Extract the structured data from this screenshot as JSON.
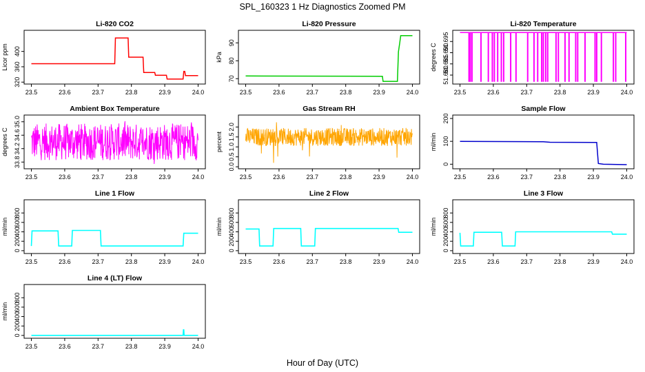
{
  "figure": {
    "title": "SPL_160323  1 Hz Diagnostics Zoomed PM",
    "xlabel": "Hour of Day (UTC)"
  },
  "chart_data": [
    {
      "type": "line",
      "title": "Li-820 CO2",
      "ylabel": "Licor ppm",
      "color": "#ff0000",
      "xlim": [
        23.5,
        24.0
      ],
      "ylim": [
        315,
        455
      ],
      "yticks": [
        320,
        360,
        400
      ],
      "series": [
        {
          "x": [
            23.5,
            23.75,
            23.752,
            23.79,
            23.792,
            23.835,
            23.837,
            23.87,
            23.872,
            23.905,
            23.907,
            23.955,
            23.957,
            23.96,
            23.962,
            24.0
          ],
          "values": [
            368,
            368,
            435,
            435,
            385,
            385,
            345,
            345,
            338,
            338,
            328,
            328,
            348,
            348,
            337,
            337
          ]
        }
      ]
    },
    {
      "type": "line",
      "title": "Li-820 Pressure",
      "ylabel": "kPa",
      "color": "#00cc00",
      "xlim": [
        23.5,
        24.0
      ],
      "ylim": [
        67,
        97
      ],
      "yticks": [
        70,
        80,
        90
      ],
      "series": [
        {
          "x": [
            23.5,
            23.91,
            23.912,
            23.955,
            23.958,
            23.962,
            23.965,
            24.0
          ],
          "values": [
            71.5,
            71.3,
            68.5,
            68.5,
            85,
            90,
            94,
            94
          ]
        }
      ]
    },
    {
      "type": "line",
      "title": "Li-820 Temperature",
      "ylabel": "degrees C",
      "color": "#ff00ff",
      "xlim": [
        23.5,
        24.0
      ],
      "ylim": [
        51.676,
        51.7
      ],
      "yticks": [
        51.68,
        51.685,
        51.69,
        51.695
      ],
      "series": [
        {
          "x": [
            23.5,
            24.0
          ],
          "values": [
            51.699,
            51.699
          ]
        }
      ],
      "dropouts": [
        23.527,
        23.531,
        23.536,
        23.563,
        23.585,
        23.597,
        23.603,
        23.613,
        23.624,
        23.631,
        23.652,
        23.668,
        23.703,
        23.722,
        23.733,
        23.745,
        23.75,
        23.757,
        23.763,
        23.788,
        23.795,
        23.815,
        23.827,
        23.847,
        23.853,
        23.875,
        23.905,
        23.91,
        23.924,
        23.96,
        23.967,
        23.997
      ],
      "dropout_level": 51.677
    },
    {
      "type": "line",
      "title": "Ambient Box Temperature",
      "ylabel": "degrees C",
      "color": "#ff00ff",
      "xlim": [
        23.5,
        24.0
      ],
      "ylim": [
        33.6,
        35.2
      ],
      "yticks": [
        33.8,
        34.2,
        34.6,
        35.0
      ],
      "series": [
        {
          "x": [
            23.5,
            24.0
          ],
          "values": [
            34.35,
            34.35
          ]
        }
      ],
      "noise_band": [
        33.85,
        34.95
      ]
    },
    {
      "type": "line",
      "title": "Gas Stream RH",
      "ylabel": "percent",
      "color": "#ffa500",
      "xlim": [
        23.5,
        24.0
      ],
      "ylim": [
        -0.1,
        2.6
      ],
      "yticks": [
        0.0,
        0.5,
        1.0,
        1.5,
        2.0
      ],
      "series": [
        {
          "x": [
            23.5,
            24.0
          ],
          "values": [
            1.5,
            1.5
          ]
        }
      ],
      "noise_band": [
        1.05,
        1.95
      ]
    },
    {
      "type": "line",
      "title": "Sample Flow",
      "ylabel": "ml/min",
      "color": "#0000cc",
      "xlim": [
        23.5,
        24.0
      ],
      "ylim": [
        -20,
        215
      ],
      "yticks": [
        0,
        100,
        200
      ],
      "series": [
        {
          "x": [
            23.5,
            23.75,
            23.77,
            23.9,
            23.91,
            23.915,
            23.93,
            24.0
          ],
          "values": [
            100,
            98,
            96,
            95,
            95,
            3,
            0,
            -2
          ]
        }
      ]
    },
    {
      "type": "line",
      "title": "Line 1 Flow",
      "ylabel": "ml/min",
      "color": "#00ffff",
      "xlim": [
        23.5,
        24.0
      ],
      "ylim": [
        -60,
        1080
      ],
      "yticks": [
        0,
        200,
        400,
        600,
        800
      ],
      "series": [
        {
          "x": [
            23.5,
            23.502,
            23.58,
            23.582,
            23.621,
            23.623,
            23.707,
            23.709,
            23.955,
            23.957,
            24.0
          ],
          "values": [
            100,
            420,
            420,
            100,
            100,
            430,
            430,
            100,
            100,
            370,
            370
          ]
        }
      ]
    },
    {
      "type": "line",
      "title": "Line 2 Flow",
      "ylabel": "ml/min",
      "color": "#00ffff",
      "xlim": [
        23.5,
        24.0
      ],
      "ylim": [
        -60,
        1080
      ],
      "yticks": [
        0,
        200,
        400,
        600,
        800
      ],
      "series": [
        {
          "x": [
            23.5,
            23.54,
            23.542,
            23.582,
            23.584,
            23.665,
            23.667,
            23.707,
            23.709,
            23.957,
            23.959,
            24.0
          ],
          "values": [
            460,
            460,
            100,
            100,
            470,
            470,
            100,
            100,
            470,
            470,
            390,
            390
          ]
        }
      ]
    },
    {
      "type": "line",
      "title": "Line 3 Flow",
      "ylabel": "ml/min",
      "color": "#00ffff",
      "xlim": [
        23.5,
        24.0
      ],
      "ylim": [
        -60,
        1080
      ],
      "yticks": [
        0,
        200,
        400,
        600,
        800
      ],
      "series": [
        {
          "x": [
            23.5,
            23.502,
            23.54,
            23.542,
            23.625,
            23.627,
            23.665,
            23.667,
            23.955,
            23.957,
            24.0
          ],
          "values": [
            380,
            100,
            100,
            390,
            390,
            100,
            100,
            400,
            400,
            350,
            350
          ]
        }
      ]
    },
    {
      "type": "line",
      "title": "Line 4 (LT) Flow",
      "ylabel": "ml/min",
      "color": "#00ffff",
      "xlim": [
        23.5,
        24.0
      ],
      "ylim": [
        -60,
        1080
      ],
      "yticks": [
        0,
        200,
        400,
        600,
        800
      ],
      "series": [
        {
          "x": [
            23.5,
            23.955,
            23.956,
            23.957,
            23.958,
            24.0
          ],
          "values": [
            2,
            2,
            120,
            120,
            2,
            2
          ]
        }
      ]
    }
  ],
  "xticks": [
    23.5,
    23.6,
    23.7,
    23.8,
    23.9,
    24.0
  ]
}
